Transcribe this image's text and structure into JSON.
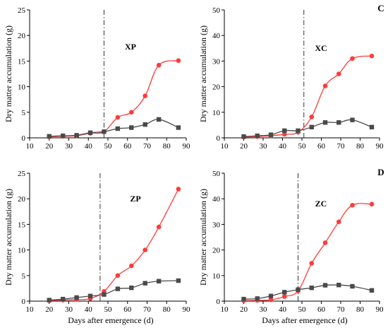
{
  "colors": {
    "red_series": "#ff3b3b",
    "gray_series": "#4a4a4a"
  },
  "chart_data": [
    {
      "type": "line",
      "title": "XP",
      "corner_label": "",
      "xlabel": "",
      "ylabel": "Dry matter accumulation (g)",
      "xlim": [
        10,
        90
      ],
      "ylim": [
        0,
        25
      ],
      "xticks": [
        "10",
        "20",
        "30",
        "40",
        "50",
        "60",
        "70",
        "80",
        "90"
      ],
      "yticks": [
        "0",
        "5",
        "10",
        "15",
        "20",
        "25"
      ],
      "vline_x": 48,
      "series": [
        {
          "color": "#ff3b3b",
          "marker": "circle",
          "x": [
            20,
            27,
            34,
            41,
            48,
            55,
            62,
            69,
            76,
            86
          ],
          "y": [
            0.2,
            0.3,
            0.4,
            0.9,
            1.2,
            4.0,
            5.0,
            8.2,
            14.2,
            15.1
          ]
        },
        {
          "color": "#4a4a4a",
          "marker": "square",
          "x": [
            20,
            27,
            34,
            41,
            48,
            55,
            62,
            69,
            76,
            86
          ],
          "y": [
            0.3,
            0.4,
            0.5,
            1.0,
            1.2,
            1.8,
            2.0,
            2.6,
            3.6,
            2.0
          ]
        }
      ]
    },
    {
      "type": "line",
      "title": "XC",
      "corner_label": "C",
      "xlabel": "",
      "ylabel": "Dry matter accumulation (g)",
      "xlim": [
        10,
        90
      ],
      "ylim": [
        0,
        50
      ],
      "xticks": [
        "10",
        "20",
        "30",
        "40",
        "50",
        "60",
        "70",
        "80",
        "90"
      ],
      "yticks": [
        "0",
        "10",
        "20",
        "30",
        "40",
        "50"
      ],
      "vline_x": 51,
      "series": [
        {
          "color": "#ff3b3b",
          "marker": "circle",
          "x": [
            20,
            27,
            34,
            41,
            48,
            55,
            62,
            69,
            76,
            86
          ],
          "y": [
            0.3,
            0.5,
            0.8,
            1.4,
            2.2,
            8.2,
            20.3,
            25.0,
            31.0,
            32.0
          ]
        },
        {
          "color": "#4a4a4a",
          "marker": "square",
          "x": [
            20,
            27,
            34,
            41,
            48,
            55,
            62,
            69,
            76,
            86
          ],
          "y": [
            0.5,
            0.8,
            1.2,
            2.8,
            2.8,
            4.2,
            6.0,
            6.0,
            7.0,
            4.2
          ]
        }
      ]
    },
    {
      "type": "line",
      "title": "ZP",
      "corner_label": "",
      "xlabel": "Days after emergence (d)",
      "ylabel": "Dry matter accumulation (g)",
      "xlim": [
        10,
        90
      ],
      "ylim": [
        0,
        25
      ],
      "xticks": [
        "10",
        "20",
        "30",
        "40",
        "50",
        "60",
        "70",
        "80",
        "90"
      ],
      "yticks": [
        "0",
        "5",
        "10",
        "15",
        "20",
        "25"
      ],
      "vline_x": 46,
      "series": [
        {
          "color": "#ff3b3b",
          "marker": "circle",
          "x": [
            20,
            27,
            34,
            41,
            48,
            55,
            62,
            69,
            76,
            86
          ],
          "y": [
            0.1,
            0.2,
            0.3,
            0.5,
            1.9,
            5.0,
            6.9,
            10.0,
            14.5,
            21.9
          ]
        },
        {
          "color": "#4a4a4a",
          "marker": "square",
          "x": [
            20,
            27,
            34,
            41,
            48,
            55,
            62,
            69,
            76,
            86
          ],
          "y": [
            0.2,
            0.4,
            0.7,
            1.0,
            1.3,
            2.4,
            2.6,
            3.5,
            3.9,
            4.0
          ]
        }
      ]
    },
    {
      "type": "line",
      "title": "ZC",
      "corner_label": "D",
      "xlabel": "Days after emergence (d)",
      "ylabel": "Dry matter accumulation (g)",
      "xlim": [
        10,
        90
      ],
      "ylim": [
        0,
        50
      ],
      "xticks": [
        "10",
        "20",
        "30",
        "40",
        "50",
        "60",
        "70",
        "80",
        "90"
      ],
      "yticks": [
        "0",
        "10",
        "20",
        "30",
        "40",
        "50"
      ],
      "vline_x": 48,
      "series": [
        {
          "color": "#ff3b3b",
          "marker": "circle",
          "x": [
            20,
            27,
            34,
            41,
            48,
            55,
            62,
            69,
            76,
            86
          ],
          "y": [
            0.2,
            0.3,
            0.5,
            1.8,
            4.0,
            14.8,
            22.8,
            31.0,
            37.5,
            37.9
          ]
        },
        {
          "color": "#4a4a4a",
          "marker": "square",
          "x": [
            20,
            27,
            34,
            41,
            48,
            55,
            62,
            69,
            76,
            86
          ],
          "y": [
            0.8,
            1.0,
            2.0,
            3.5,
            4.5,
            5.2,
            6.2,
            6.3,
            5.8,
            4.2
          ]
        }
      ]
    }
  ]
}
